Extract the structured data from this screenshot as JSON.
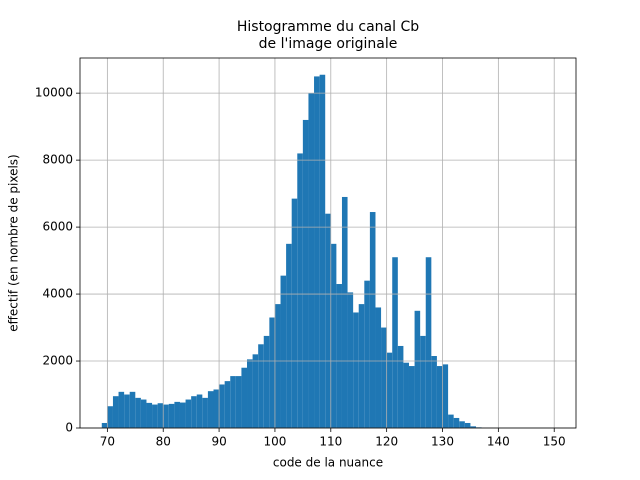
{
  "chart_data": {
    "type": "histogram",
    "title": [
      "Histogramme du canal Cb",
      "de l'image originale"
    ],
    "xlabel": "code de la nuance",
    "ylabel": "effectif (en nombre de pixels)",
    "color": "#1f77b4",
    "bins": [
      69,
      70,
      71,
      72,
      73,
      74,
      75,
      76,
      77,
      78,
      79,
      80,
      81,
      82,
      83,
      84,
      85,
      86,
      87,
      88,
      89,
      90,
      91,
      92,
      93,
      94,
      95,
      96,
      97,
      98,
      99,
      100,
      101,
      102,
      103,
      104,
      105,
      106,
      107,
      108,
      109,
      110,
      111,
      112,
      113,
      114,
      115,
      116,
      117,
      118,
      119,
      120,
      121,
      122,
      123,
      124,
      125,
      126,
      127,
      128,
      129,
      130,
      131,
      132,
      133,
      134,
      135,
      136,
      137,
      138,
      139,
      140,
      141,
      142,
      143,
      144,
      145,
      146,
      147,
      148,
      149,
      150,
      151
    ],
    "values": [
      150,
      650,
      950,
      1080,
      1000,
      1080,
      900,
      850,
      750,
      700,
      740,
      700,
      720,
      780,
      760,
      850,
      950,
      1000,
      900,
      1100,
      1150,
      1300,
      1400,
      1550,
      1550,
      1800,
      2050,
      2200,
      2500,
      2750,
      3300,
      3700,
      4550,
      5500,
      6850,
      8200,
      9200,
      10000,
      10500,
      10550,
      6400,
      5500,
      4300,
      6900,
      4050,
      3450,
      3700,
      4400,
      6450,
      3600,
      3000,
      2250,
      5100,
      2450,
      1950,
      1850,
      3500,
      2750,
      5100,
      2150,
      1850,
      1900,
      400,
      300,
      200,
      150,
      50,
      20,
      10,
      10,
      5,
      5,
      5,
      5,
      5,
      5,
      5,
      5,
      5,
      5,
      5,
      5
    ],
    "xlim": [
      65.1,
      153.9
    ],
    "ylim": [
      0,
      11050
    ],
    "xticks": [
      70,
      80,
      90,
      100,
      110,
      120,
      130,
      140,
      150
    ],
    "yticks": [
      0,
      2000,
      4000,
      6000,
      8000,
      10000
    ],
    "grid": true
  }
}
